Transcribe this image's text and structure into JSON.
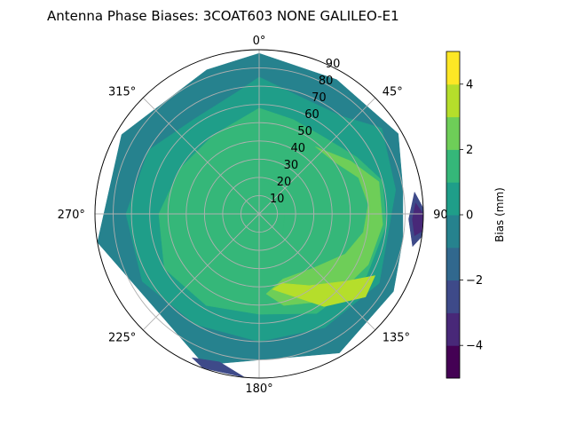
{
  "chart_data": {
    "type": "polar-contour",
    "title": "Antenna Phase Biases: 3COAT603        NONE GALILEO-E1",
    "azimuth_ticks": [
      {
        "angle": 0,
        "label": "0°"
      },
      {
        "angle": 45,
        "label": "45°"
      },
      {
        "angle": 90,
        "label": "90°"
      },
      {
        "angle": 135,
        "label": "135°"
      },
      {
        "angle": 180,
        "label": "180°"
      },
      {
        "angle": 225,
        "label": "225°"
      },
      {
        "angle": 270,
        "label": "270°"
      },
      {
        "angle": 315,
        "label": "315°"
      }
    ],
    "radial_ticks": [
      {
        "value": 10,
        "label": "10"
      },
      {
        "value": 20,
        "label": "20"
      },
      {
        "value": 30,
        "label": "30"
      },
      {
        "value": 40,
        "label": "40"
      },
      {
        "value": 50,
        "label": "50"
      },
      {
        "value": 60,
        "label": "60"
      },
      {
        "value": 70,
        "label": "70"
      },
      {
        "value": 80,
        "label": "80"
      },
      {
        "value": 90,
        "label": "90"
      }
    ],
    "rlim": [
      0,
      90
    ],
    "grid": true,
    "colorbar": {
      "label": "Bias (mm)",
      "vmin": -5,
      "vmax": 5,
      "levels": [
        -5,
        -4,
        -3,
        -2,
        -1,
        0,
        1,
        2,
        3,
        4,
        5
      ],
      "colors": [
        "#440154",
        "#482878",
        "#3e4a89",
        "#31688e",
        "#26828e",
        "#1f9e89",
        "#35b779",
        "#6ece58",
        "#b5de2b",
        "#fde725"
      ],
      "ticks": [
        {
          "value": -4,
          "label": "−4"
        },
        {
          "value": -2,
          "label": "−2"
        },
        {
          "value": 0,
          "label": "0"
        },
        {
          "value": 2,
          "label": "2"
        },
        {
          "value": 4,
          "label": "4"
        }
      ]
    },
    "contour_regions": [
      {
        "level": -1.5,
        "az": [
          [
            0,
            90
          ],
          [
            360,
            90
          ],
          [
            360,
            0
          ],
          [
            0,
            0
          ]
        ]
      },
      {
        "level": -0.5,
        "az": [
          [
            0,
            88
          ],
          [
            30,
            85
          ],
          [
            60,
            88
          ],
          [
            80,
            80
          ],
          [
            100,
            80
          ],
          [
            120,
            85
          ],
          [
            150,
            88
          ],
          [
            200,
            88
          ],
          [
            260,
            90
          ],
          [
            300,
            87
          ],
          [
            340,
            84
          ],
          [
            360,
            88
          ],
          [
            360,
            0
          ],
          [
            0,
            0
          ]
        ]
      },
      {
        "level": 0.5,
        "az": [
          [
            0,
            75
          ],
          [
            20,
            68
          ],
          [
            40,
            70
          ],
          [
            55,
            82
          ],
          [
            80,
            76
          ],
          [
            120,
            76
          ],
          [
            150,
            72
          ],
          [
            180,
            70
          ],
          [
            210,
            70
          ],
          [
            240,
            74
          ],
          [
            270,
            73
          ],
          [
            300,
            70
          ],
          [
            325,
            63
          ],
          [
            350,
            68
          ],
          [
            360,
            75
          ],
          [
            360,
            0
          ],
          [
            0,
            0
          ]
        ]
      },
      {
        "level": 1.5,
        "az": [
          [
            0,
            58
          ],
          [
            20,
            55
          ],
          [
            40,
            55
          ],
          [
            60,
            62
          ],
          [
            75,
            70
          ],
          [
            95,
            70
          ],
          [
            120,
            68
          ],
          [
            150,
            63
          ],
          [
            180,
            55
          ],
          [
            210,
            58
          ],
          [
            240,
            60
          ],
          [
            270,
            55
          ],
          [
            300,
            50
          ],
          [
            330,
            50
          ],
          [
            360,
            58
          ],
          [
            360,
            0
          ],
          [
            0,
            0
          ]
        ]
      },
      {
        "level": -2.5,
        "az": [
          [
            82,
            86
          ],
          [
            88,
            90
          ],
          [
            98,
            90
          ],
          [
            102,
            86
          ],
          [
            92,
            82
          ]
        ]
      },
      {
        "level": -3.5,
        "az": [
          [
            86,
            86
          ],
          [
            90,
            90
          ],
          [
            96,
            90
          ],
          [
            98,
            86
          ],
          [
            92,
            84
          ]
        ]
      },
      {
        "level": -2.5,
        "az": [
          [
            185,
            90
          ],
          [
            200,
            90
          ],
          [
            205,
            87
          ],
          [
            195,
            84
          ]
        ]
      },
      {
        "level": 2.5,
        "az": [
          [
            40,
            48
          ],
          [
            60,
            58
          ],
          [
            75,
            68
          ],
          [
            95,
            68
          ],
          [
            115,
            66
          ],
          [
            140,
            62
          ],
          [
            165,
            52
          ],
          [
            175,
            44
          ],
          [
            160,
            38
          ],
          [
            135,
            42
          ],
          [
            115,
            52
          ],
          [
            100,
            58
          ],
          [
            85,
            60
          ],
          [
            70,
            58
          ],
          [
            55,
            50
          ]
        ]
      },
      {
        "level": 3.5,
        "az": [
          [
            118,
            72
          ],
          [
            128,
            74
          ],
          [
            145,
            62
          ],
          [
            170,
            42
          ],
          [
            162,
            40
          ],
          [
            145,
            48
          ],
          [
            128,
            60
          ]
        ]
      },
      {
        "level": 1.5,
        "az": [
          [
            0,
            20
          ],
          [
            45,
            18
          ],
          [
            90,
            14
          ],
          [
            135,
            18
          ],
          [
            180,
            22
          ],
          [
            225,
            20
          ],
          [
            270,
            20
          ],
          [
            315,
            18
          ],
          [
            360,
            20
          ],
          [
            360,
            0
          ],
          [
            0,
            0
          ]
        ]
      }
    ]
  }
}
